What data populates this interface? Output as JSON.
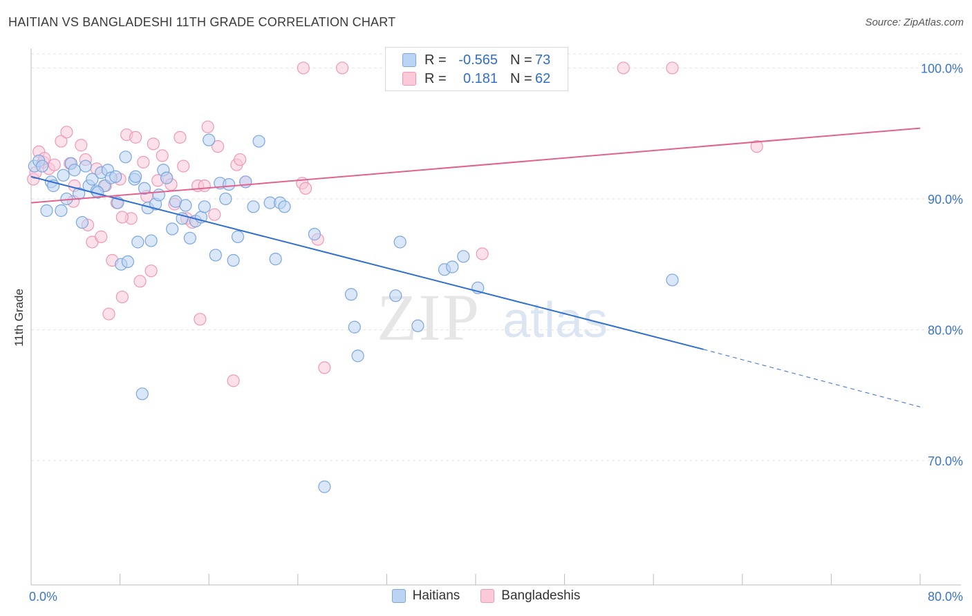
{
  "title": "HAITIAN VS BANGLADESHI 11TH GRADE CORRELATION CHART",
  "source": "Source: ZipAtlas.com",
  "watermark": {
    "zip": "ZIP",
    "atlas": "atlas"
  },
  "legend_top": {
    "r_label": "R =",
    "n_label": "N =",
    "rows": [
      {
        "series": "Haitians",
        "r": "-0.565",
        "n": "73"
      },
      {
        "series": "Bangladeshis",
        "r": "0.181",
        "n": "62"
      }
    ]
  },
  "legend_bottom": [
    "Haitians",
    "Bangladeshis"
  ],
  "colors": {
    "blue_fill": "#bcd4f3",
    "blue_stroke": "#7aa6e0",
    "blue_line": "#2f6fd0",
    "pink_fill": "#fbc9d8",
    "pink_stroke": "#ef98b6",
    "pink_line": "#e2628f",
    "axis_text": "#3a74c8"
  },
  "chart_data": {
    "type": "scatter",
    "title": "HAITIAN VS BANGLADESHI 11TH GRADE CORRELATION CHART",
    "xlabel": "",
    "ylabel": "11th Grade",
    "xlim": [
      0,
      80
    ],
    "ylim": [
      60.5,
      101.5
    ],
    "x_tick_labels": [
      "0.0%",
      "80.0%"
    ],
    "y_ticks": [
      70,
      80,
      90,
      100
    ],
    "y_tick_labels": [
      "70.0%",
      "80.0%",
      "90.0%",
      "100.0%"
    ],
    "series": [
      {
        "name": "Haitians",
        "r": -0.565,
        "n": 73,
        "trend": {
          "x0": 0,
          "y0": 91.7,
          "x1": 60.5,
          "y1": 78.5,
          "dash_to_x": 80,
          "dash_to_y": 74.1
        },
        "points": [
          [
            0.3,
            92.5
          ],
          [
            0.7,
            92.9
          ],
          [
            1.0,
            92.5
          ],
          [
            1.4,
            89.1
          ],
          [
            1.8,
            91.3
          ],
          [
            2.0,
            91.0
          ],
          [
            2.7,
            89.1
          ],
          [
            2.9,
            91.8
          ],
          [
            3.2,
            90.0
          ],
          [
            3.6,
            92.7
          ],
          [
            3.9,
            92.2
          ],
          [
            4.3,
            90.4
          ],
          [
            4.6,
            88.2
          ],
          [
            4.9,
            92.5
          ],
          [
            5.2,
            91.0
          ],
          [
            5.5,
            91.5
          ],
          [
            5.9,
            90.6
          ],
          [
            6.3,
            92.0
          ],
          [
            6.6,
            91.0
          ],
          [
            6.9,
            92.2
          ],
          [
            7.2,
            91.6
          ],
          [
            7.6,
            91.7
          ],
          [
            7.8,
            89.7
          ],
          [
            8.1,
            85.0
          ],
          [
            8.5,
            93.2
          ],
          [
            8.7,
            85.2
          ],
          [
            9.3,
            91.5
          ],
          [
            9.6,
            86.7
          ],
          [
            10.2,
            90.8
          ],
          [
            10.5,
            89.3
          ],
          [
            10.8,
            86.8
          ],
          [
            11.2,
            89.6
          ],
          [
            11.5,
            90.3
          ],
          [
            11.9,
            92.2
          ],
          [
            12.2,
            91.6
          ],
          [
            12.7,
            87.7
          ],
          [
            13.0,
            89.8
          ],
          [
            13.6,
            88.5
          ],
          [
            13.9,
            89.5
          ],
          [
            14.3,
            87.0
          ],
          [
            14.8,
            88.3
          ],
          [
            15.3,
            88.6
          ],
          [
            15.6,
            89.4
          ],
          [
            16.0,
            94.5
          ],
          [
            16.6,
            85.7
          ],
          [
            17.0,
            91.2
          ],
          [
            17.5,
            90.0
          ],
          [
            17.8,
            91.1
          ],
          [
            18.2,
            85.3
          ],
          [
            18.6,
            87.1
          ],
          [
            19.3,
            91.3
          ],
          [
            20.0,
            89.4
          ],
          [
            20.5,
            94.4
          ],
          [
            21.5,
            89.7
          ],
          [
            22.0,
            85.4
          ],
          [
            22.4,
            89.7
          ],
          [
            22.8,
            89.4
          ],
          [
            25.5,
            87.3
          ],
          [
            26.4,
            68.0
          ],
          [
            28.8,
            82.7
          ],
          [
            29.1,
            80.2
          ],
          [
            29.4,
            78.0
          ],
          [
            32.8,
            82.6
          ],
          [
            33.2,
            86.7
          ],
          [
            34.8,
            80.3
          ],
          [
            37.2,
            84.6
          ],
          [
            37.9,
            84.8
          ],
          [
            38.9,
            85.6
          ],
          [
            40.2,
            83.2
          ],
          [
            57.7,
            83.8
          ],
          [
            10.0,
            75.1
          ],
          [
            9.4,
            91.7
          ],
          [
            6.0,
            90.5
          ]
        ]
      },
      {
        "name": "Bangladeshis",
        "r": 0.181,
        "n": 62,
        "trend": {
          "x0": 0,
          "y0": 89.7,
          "x1": 80,
          "y1": 95.4
        },
        "points": [
          [
            0.2,
            91.5
          ],
          [
            0.4,
            92.0
          ],
          [
            0.7,
            93.6
          ],
          [
            1.1,
            92.8
          ],
          [
            1.6,
            92.3
          ],
          [
            2.1,
            92.6
          ],
          [
            2.7,
            94.4
          ],
          [
            3.2,
            95.1
          ],
          [
            3.5,
            92.7
          ],
          [
            3.8,
            89.8
          ],
          [
            4.5,
            94.1
          ],
          [
            4.9,
            93.0
          ],
          [
            5.1,
            88.0
          ],
          [
            5.5,
            86.7
          ],
          [
            5.9,
            92.3
          ],
          [
            6.3,
            87.1
          ],
          [
            6.7,
            91.0
          ],
          [
            7.0,
            81.2
          ],
          [
            7.3,
            85.3
          ],
          [
            7.7,
            89.7
          ],
          [
            8.0,
            91.5
          ],
          [
            8.2,
            82.5
          ],
          [
            8.6,
            94.9
          ],
          [
            9.0,
            88.5
          ],
          [
            9.4,
            94.7
          ],
          [
            9.8,
            83.7
          ],
          [
            10.1,
            92.8
          ],
          [
            10.4,
            90.2
          ],
          [
            10.8,
            84.5
          ],
          [
            11.0,
            94.2
          ],
          [
            11.4,
            91.4
          ],
          [
            11.8,
            93.3
          ],
          [
            12.2,
            91.6
          ],
          [
            12.6,
            91.1
          ],
          [
            12.9,
            89.6
          ],
          [
            13.4,
            94.7
          ],
          [
            13.7,
            92.5
          ],
          [
            14.0,
            88.5
          ],
          [
            14.5,
            88.2
          ],
          [
            15.0,
            91.0
          ],
          [
            15.2,
            80.8
          ],
          [
            15.6,
            91.0
          ],
          [
            15.9,
            95.5
          ],
          [
            16.5,
            88.8
          ],
          [
            16.8,
            94.0
          ],
          [
            18.2,
            76.1
          ],
          [
            18.5,
            92.6
          ],
          [
            18.8,
            93.0
          ],
          [
            19.3,
            91.3
          ],
          [
            24.4,
            91.2
          ],
          [
            24.7,
            90.8
          ],
          [
            25.8,
            86.9
          ],
          [
            26.4,
            77.1
          ],
          [
            24.5,
            100.0
          ],
          [
            28.0,
            100.0
          ],
          [
            40.6,
            85.8
          ],
          [
            53.3,
            100.0
          ],
          [
            57.7,
            100.0
          ],
          [
            65.3,
            94.0
          ],
          [
            3.9,
            91.0
          ],
          [
            1.2,
            93.1
          ],
          [
            8.2,
            88.6
          ]
        ]
      }
    ]
  }
}
